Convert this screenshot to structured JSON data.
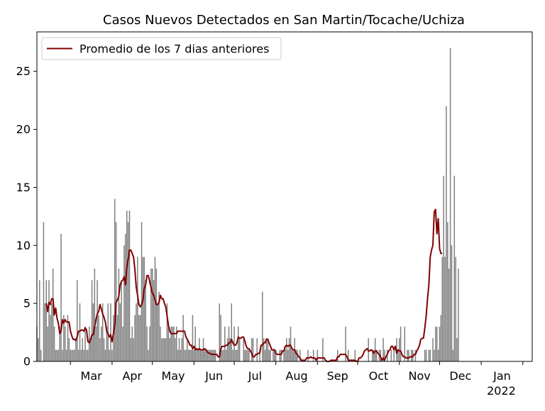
{
  "chart_data": {
    "type": "bar",
    "title": "Casos Nuevos Detectados en San Martin/Tocache/Uchiza",
    "xlabel": "",
    "ylabel": "",
    "ylim": [
      0,
      28.4
    ],
    "yticks": [
      0,
      5,
      10,
      15,
      20,
      25
    ],
    "xrange": [
      "2021-02-04",
      "2022-02-08"
    ],
    "xticks": [
      {
        "date": "2021-03-01",
        "label": "Mar"
      },
      {
        "date": "2021-04-01",
        "label": "Apr"
      },
      {
        "date": "2021-05-01",
        "label": "May"
      },
      {
        "date": "2021-06-01",
        "label": "Jun"
      },
      {
        "date": "2021-07-01",
        "label": "Jul"
      },
      {
        "date": "2021-08-01",
        "label": "Aug"
      },
      {
        "date": "2021-09-01",
        "label": "Sep"
      },
      {
        "date": "2021-10-01",
        "label": "Oct"
      },
      {
        "date": "2021-11-01",
        "label": "Nov"
      },
      {
        "date": "2021-12-01",
        "label": "Dec"
      },
      {
        "date": "2022-01-01",
        "label": "Jan"
      }
    ],
    "year_label": "2022",
    "legend": {
      "label": "Promedio de los 7 dias anteriores",
      "position": "top-left"
    },
    "bar_color": "#808080",
    "line_color": "#800000",
    "start_date": "2021-02-04",
    "daily_cases": [
      3,
      2,
      7,
      1,
      0,
      12,
      5,
      7,
      3,
      7,
      4,
      5,
      8,
      3,
      1,
      1,
      1,
      3,
      11,
      1,
      4,
      3,
      1,
      4,
      2,
      1,
      1,
      1,
      1,
      2,
      7,
      1,
      5,
      1,
      2,
      1,
      3,
      1,
      1,
      3,
      2,
      7,
      5,
      8,
      3,
      7,
      4,
      2,
      3,
      5,
      2,
      1,
      3,
      5,
      1,
      5,
      1,
      4,
      14,
      12,
      4,
      8,
      5,
      7,
      3,
      10,
      11,
      13,
      12,
      13,
      2,
      3,
      2,
      4,
      5,
      9,
      4,
      4,
      12,
      9,
      9,
      7,
      3,
      1,
      3,
      8,
      8,
      7,
      9,
      8,
      5,
      6,
      3,
      2,
      2,
      2,
      2,
      5,
      3,
      2,
      3,
      3,
      3,
      2,
      3,
      1,
      2,
      1,
      2,
      4,
      1,
      1,
      2,
      1,
      1,
      1,
      4,
      1,
      3,
      1,
      1,
      2,
      1,
      1,
      2,
      1,
      1,
      1,
      1,
      1,
      1,
      1,
      1,
      1,
      0,
      0,
      5,
      4,
      1,
      1,
      3,
      1,
      2,
      3,
      2,
      5,
      1,
      3,
      1,
      1,
      3,
      2,
      0,
      0,
      2,
      1,
      1,
      1,
      1,
      0,
      2,
      2,
      0,
      0,
      2,
      0,
      1,
      0,
      6,
      2,
      1,
      2,
      2,
      1,
      1,
      0,
      1,
      1,
      1,
      0,
      0,
      1,
      1,
      0,
      1,
      1,
      2,
      1,
      2,
      3,
      1,
      1,
      2,
      1,
      1,
      0,
      1,
      0,
      0,
      0,
      0,
      0,
      1,
      0,
      0,
      0,
      1,
      0,
      0,
      1,
      0,
      0,
      0,
      2,
      0,
      0,
      0,
      0,
      0,
      0,
      0,
      0,
      0,
      0,
      1,
      0,
      0,
      0,
      0,
      0,
      3,
      0,
      1,
      0,
      0,
      0,
      0,
      1,
      0,
      0,
      0,
      0,
      0,
      0,
      0,
      0,
      0,
      2,
      0,
      0,
      1,
      1,
      2,
      1,
      0,
      1,
      1,
      0,
      2,
      1,
      0,
      1,
      0,
      0,
      1,
      0,
      1,
      0,
      2,
      1,
      2,
      3,
      0,
      0,
      3,
      0,
      1,
      1,
      0,
      1,
      1,
      0,
      1,
      0,
      0,
      0,
      0,
      0,
      0,
      1,
      1,
      0,
      1,
      1,
      0,
      2,
      1,
      3,
      3,
      1,
      3,
      4,
      9,
      16,
      9,
      22,
      12,
      8,
      27,
      10,
      1,
      16,
      9,
      2,
      8
    ],
    "moving_avg_7": [
      null,
      null,
      null,
      null,
      null,
      null,
      null,
      5.0,
      4.3,
      5.1,
      4.9,
      5.4,
      5.4,
      4.0,
      4.6,
      3.7,
      3.3,
      2.4,
      2.6,
      3.6,
      3.3,
      3.6,
      3.4,
      3.4,
      3.4,
      2.6,
      2.2,
      1.9,
      1.9,
      1.8,
      2.1,
      2.6,
      2.6,
      2.7,
      2.7,
      2.6,
      2.9,
      2.7,
      1.7,
      1.6,
      1.9,
      2.3,
      2.3,
      3.0,
      3.6,
      4.1,
      4.3,
      4.9,
      4.5,
      4.1,
      3.8,
      3.4,
      2.6,
      2.4,
      2.1,
      2.3,
      1.7,
      2.4,
      3.1,
      5.1,
      5.3,
      5.6,
      6.6,
      6.9,
      7.0,
      7.3,
      6.6,
      8.1,
      8.8,
      9.6,
      9.6,
      9.3,
      9.0,
      7.9,
      6.4,
      5.7,
      4.9,
      4.7,
      4.9,
      5.3,
      6.3,
      6.6,
      7.4,
      7.4,
      6.9,
      6.4,
      5.9,
      5.7,
      5.3,
      4.9,
      4.9,
      5.1,
      5.7,
      5.4,
      5.4,
      5.0,
      4.7,
      3.9,
      3.1,
      2.6,
      2.4,
      2.4,
      2.4,
      2.4,
      2.4,
      2.6,
      2.6,
      2.6,
      2.6,
      2.6,
      2.6,
      2.1,
      1.9,
      1.7,
      1.4,
      1.4,
      1.1,
      1.3,
      1.0,
      1.1,
      1.0,
      1.1,
      1.0,
      1.0,
      1.0,
      1.1,
      1.0,
      0.8,
      0.7,
      0.7,
      0.6,
      0.6,
      0.6,
      0.6,
      0.6,
      0.4,
      0.4,
      1.1,
      1.3,
      1.3,
      1.3,
      1.4,
      1.4,
      1.6,
      1.6,
      1.9,
      1.6,
      1.4,
      1.4,
      1.6,
      2.1,
      2.0,
      2.0,
      2.1,
      2.1,
      1.7,
      1.3,
      1.1,
      1.1,
      0.9,
      0.7,
      0.4,
      0.4,
      0.6,
      0.6,
      0.7,
      0.7,
      1.4,
      1.4,
      1.6,
      1.6,
      1.9,
      1.9,
      1.6,
      1.3,
      1.0,
      1.0,
      1.0,
      0.7,
      0.6,
      0.6,
      0.6,
      0.6,
      0.9,
      0.9,
      1.3,
      1.4,
      1.3,
      1.4,
      1.4,
      1.1,
      1.0,
      1.0,
      0.7,
      0.6,
      0.4,
      0.3,
      0.1,
      0.1,
      0.1,
      0.1,
      0.3,
      0.3,
      0.3,
      0.4,
      0.3,
      0.3,
      0.3,
      0.1,
      0.3,
      0.3,
      0.3,
      0.3,
      0.3,
      0.3,
      0.1,
      0.0,
      0.0,
      0.0,
      0.1,
      0.1,
      0.1,
      0.1,
      0.1,
      0.4,
      0.4,
      0.6,
      0.6,
      0.6,
      0.6,
      0.6,
      0.4,
      0.1,
      0.1,
      0.1,
      0.1,
      0.1,
      0.1,
      0.0,
      0.0,
      0.3,
      0.3,
      0.4,
      0.6,
      0.9,
      1.0,
      1.1,
      0.9,
      0.9,
      1.0,
      0.9,
      0.7,
      0.9,
      0.9,
      0.7,
      0.6,
      0.4,
      0.1,
      0.3,
      0.1,
      0.4,
      0.6,
      0.9,
      1.0,
      1.3,
      1.3,
      1.0,
      1.3,
      0.7,
      1.0,
      0.9,
      0.9,
      0.6,
      0.4,
      0.4,
      0.3,
      0.3,
      0.3,
      0.4,
      0.4,
      0.4,
      0.6,
      0.6,
      0.9,
      1.1,
      1.4,
      1.9,
      2.0,
      2.0,
      2.9,
      3.9,
      5.4,
      6.6,
      9.0,
      9.6,
      10.0,
      12.9,
      13.1,
      11.0,
      12.3,
      9.7,
      9.3,
      9.3
    ]
  }
}
